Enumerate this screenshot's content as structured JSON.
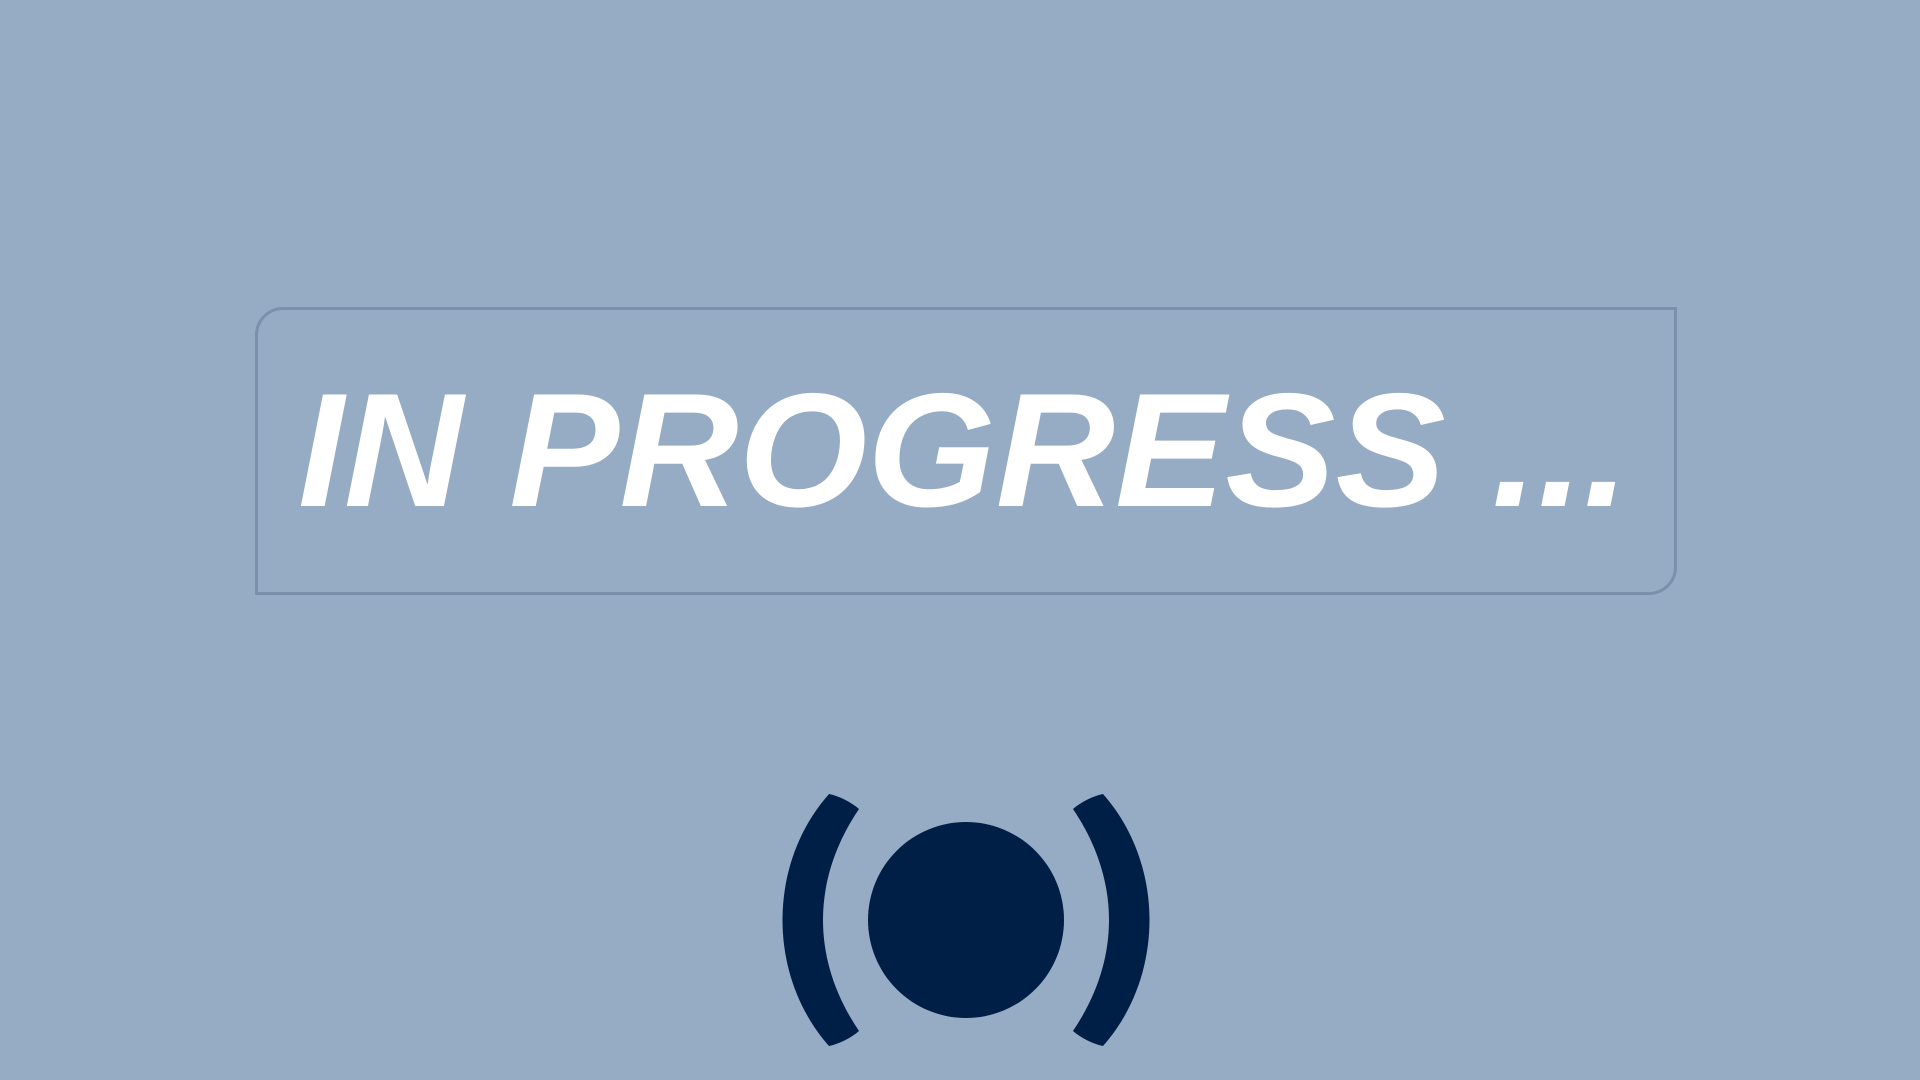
{
  "status": {
    "label": "IN PROGRESS ..."
  },
  "indicator": {
    "icon": "live-broadcast-icon",
    "color": "#001f47"
  },
  "theme": {
    "background": "#96acc4",
    "border": "#7a91ac",
    "text": "#ffffff"
  }
}
